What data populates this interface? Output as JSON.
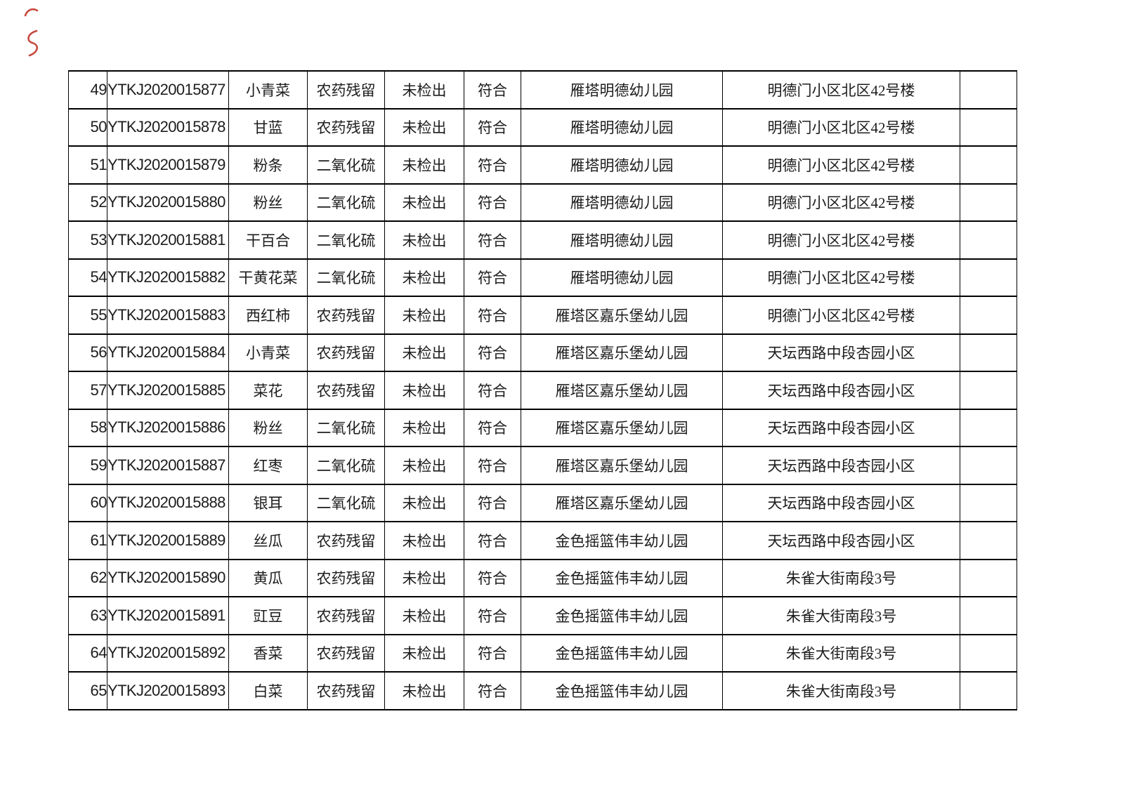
{
  "annotations": {
    "pen_marks_color": "#c2362a"
  },
  "table": {
    "rows": [
      {
        "no": "49",
        "sample_id": "YTKJ2020015877",
        "product": "小青菜",
        "test_item": "农药残留",
        "result": "未检出",
        "conclusion": "符合",
        "organization": "雁塔明德幼儿园",
        "address": "明德门小区北区42号楼",
        "note": ""
      },
      {
        "no": "50",
        "sample_id": "YTKJ2020015878",
        "product": "甘蓝",
        "test_item": "农药残留",
        "result": "未检出",
        "conclusion": "符合",
        "organization": "雁塔明德幼儿园",
        "address": "明德门小区北区42号楼",
        "note": ""
      },
      {
        "no": "51",
        "sample_id": "YTKJ2020015879",
        "product": "粉条",
        "test_item": "二氧化硫",
        "result": "未检出",
        "conclusion": "符合",
        "organization": "雁塔明德幼儿园",
        "address": "明德门小区北区42号楼",
        "note": ""
      },
      {
        "no": "52",
        "sample_id": "YTKJ2020015880",
        "product": "粉丝",
        "test_item": "二氧化硫",
        "result": "未检出",
        "conclusion": "符合",
        "organization": "雁塔明德幼儿园",
        "address": "明德门小区北区42号楼",
        "note": ""
      },
      {
        "no": "53",
        "sample_id": "YTKJ2020015881",
        "product": "干百合",
        "test_item": "二氧化硫",
        "result": "未检出",
        "conclusion": "符合",
        "organization": "雁塔明德幼儿园",
        "address": "明德门小区北区42号楼",
        "note": ""
      },
      {
        "no": "54",
        "sample_id": "YTKJ2020015882",
        "product": "干黄花菜",
        "test_item": "二氧化硫",
        "result": "未检出",
        "conclusion": "符合",
        "organization": "雁塔明德幼儿园",
        "address": "明德门小区北区42号楼",
        "note": ""
      },
      {
        "no": "55",
        "sample_id": "YTKJ2020015883",
        "product": "西红柿",
        "test_item": "农药残留",
        "result": "未检出",
        "conclusion": "符合",
        "organization": "雁塔区嘉乐堡幼儿园",
        "address": "明德门小区北区42号楼",
        "note": ""
      },
      {
        "no": "56",
        "sample_id": "YTKJ2020015884",
        "product": "小青菜",
        "test_item": "农药残留",
        "result": "未检出",
        "conclusion": "符合",
        "organization": "雁塔区嘉乐堡幼儿园",
        "address": "天坛西路中段杏园小区",
        "note": ""
      },
      {
        "no": "57",
        "sample_id": "YTKJ2020015885",
        "product": "菜花",
        "test_item": "农药残留",
        "result": "未检出",
        "conclusion": "符合",
        "organization": "雁塔区嘉乐堡幼儿园",
        "address": "天坛西路中段杏园小区",
        "note": ""
      },
      {
        "no": "58",
        "sample_id": "YTKJ2020015886",
        "product": "粉丝",
        "test_item": "二氧化硫",
        "result": "未检出",
        "conclusion": "符合",
        "organization": "雁塔区嘉乐堡幼儿园",
        "address": "天坛西路中段杏园小区",
        "note": ""
      },
      {
        "no": "59",
        "sample_id": "YTKJ2020015887",
        "product": "红枣",
        "test_item": "二氧化硫",
        "result": "未检出",
        "conclusion": "符合",
        "organization": "雁塔区嘉乐堡幼儿园",
        "address": "天坛西路中段杏园小区",
        "note": ""
      },
      {
        "no": "60",
        "sample_id": "YTKJ2020015888",
        "product": "银耳",
        "test_item": "二氧化硫",
        "result": "未检出",
        "conclusion": "符合",
        "organization": "雁塔区嘉乐堡幼儿园",
        "address": "天坛西路中段杏园小区",
        "note": ""
      },
      {
        "no": "61",
        "sample_id": "YTKJ2020015889",
        "product": "丝瓜",
        "test_item": "农药残留",
        "result": "未检出",
        "conclusion": "符合",
        "organization": "金色摇篮伟丰幼儿园",
        "address": "天坛西路中段杏园小区",
        "note": ""
      },
      {
        "no": "62",
        "sample_id": "YTKJ2020015890",
        "product": "黄瓜",
        "test_item": "农药残留",
        "result": "未检出",
        "conclusion": "符合",
        "organization": "金色摇篮伟丰幼儿园",
        "address": "朱雀大街南段3号",
        "note": ""
      },
      {
        "no": "63",
        "sample_id": "YTKJ2020015891",
        "product": "豇豆",
        "test_item": "农药残留",
        "result": "未检出",
        "conclusion": "符合",
        "organization": "金色摇篮伟丰幼儿园",
        "address": "朱雀大街南段3号",
        "note": ""
      },
      {
        "no": "64",
        "sample_id": "YTKJ2020015892",
        "product": "香菜",
        "test_item": "农药残留",
        "result": "未检出",
        "conclusion": "符合",
        "organization": "金色摇篮伟丰幼儿园",
        "address": "朱雀大街南段3号",
        "note": ""
      },
      {
        "no": "65",
        "sample_id": "YTKJ2020015893",
        "product": "白菜",
        "test_item": "农药残留",
        "result": "未检出",
        "conclusion": "符合",
        "organization": "金色摇篮伟丰幼儿园",
        "address": "朱雀大街南段3号",
        "note": ""
      }
    ]
  }
}
